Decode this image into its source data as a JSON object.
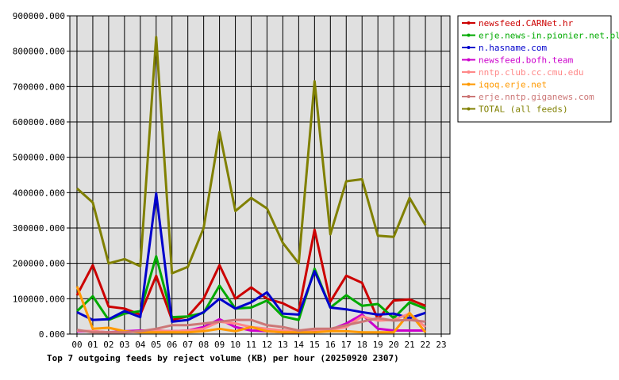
{
  "chart_data": {
    "type": "line",
    "title": "Top 7 outgoing feeds by reject volume (KB) per hour (20250920 2307)",
    "xlabel": "",
    "ylabel": "",
    "categories": [
      "00",
      "01",
      "02",
      "03",
      "04",
      "05",
      "06",
      "07",
      "08",
      "09",
      "10",
      "11",
      "12",
      "13",
      "14",
      "15",
      "16",
      "17",
      "18",
      "19",
      "20",
      "21",
      "22",
      "23"
    ],
    "ylim": [
      0,
      900000
    ],
    "yticks": [
      0,
      100000,
      200000,
      300000,
      400000,
      500000,
      600000,
      700000,
      800000,
      900000
    ],
    "ytick_labels": [
      "0.000",
      "100000.000",
      "200000.000",
      "300000.000",
      "400000.000",
      "500000.000",
      "600000.000",
      "700000.000",
      "800000.000",
      "900000.000"
    ],
    "grid": true,
    "legend_position": "top-right",
    "series": [
      {
        "name": "newsfeed.CARNet.hr",
        "color": "#cc0000",
        "values": [
          110000,
          195000,
          78000,
          72000,
          55000,
          165000,
          40000,
          50000,
          100000,
          195000,
          100000,
          132000,
          100000,
          87000,
          65000,
          295000,
          92000,
          165000,
          145000,
          42000,
          95000,
          98000,
          80000,
          null
        ]
      },
      {
        "name": "erje.news-in.pionier.net.pl",
        "color": "#00aa00",
        "values": [
          65000,
          107000,
          40000,
          58000,
          65000,
          220000,
          48000,
          50000,
          60000,
          137000,
          72000,
          75000,
          95000,
          50000,
          40000,
          185000,
          75000,
          110000,
          80000,
          85000,
          45000,
          90000,
          72000,
          null
        ]
      },
      {
        "name": "n.hasname.com",
        "color": "#0000cc",
        "values": [
          62000,
          40000,
          42000,
          65000,
          48000,
          398000,
          35000,
          40000,
          62000,
          100000,
          72000,
          90000,
          118000,
          58000,
          55000,
          178000,
          75000,
          70000,
          62000,
          55000,
          58000,
          45000,
          60000,
          null
        ]
      },
      {
        "name": "newsfeed.bofh.team",
        "color": "#cc00cc",
        "values": [
          8000,
          8000,
          5000,
          8000,
          10000,
          10000,
          8000,
          10000,
          20000,
          42000,
          20000,
          10000,
          8000,
          5000,
          5000,
          10000,
          12000,
          30000,
          55000,
          15000,
          10000,
          10000,
          10000,
          null
        ]
      },
      {
        "name": "nntp.club.cc.cmu.edu",
        "color": "#ff8888",
        "values": [
          10000,
          8000,
          5000,
          5000,
          8000,
          10000,
          8000,
          10000,
          15000,
          35000,
          30000,
          20000,
          15000,
          10000,
          8000,
          12000,
          12000,
          20000,
          50000,
          38000,
          40000,
          58000,
          20000,
          null
        ]
      },
      {
        "name": "iqoq.erje.net",
        "color": "#ff9900",
        "values": [
          135000,
          15000,
          18000,
          8000,
          5000,
          5000,
          5000,
          5000,
          8000,
          15000,
          8000,
          20000,
          8000,
          5000,
          5000,
          5000,
          8000,
          8000,
          5000,
          5000,
          5000,
          60000,
          5000,
          null
        ]
      },
      {
        "name": "erje.nntp.giganews.com",
        "color": "#cc7777",
        "values": [
          12000,
          5000,
          5000,
          5000,
          8000,
          15000,
          25000,
          25000,
          30000,
          35000,
          40000,
          40000,
          25000,
          20000,
          10000,
          15000,
          15000,
          25000,
          35000,
          45000,
          38000,
          40000,
          35000,
          null
        ]
      },
      {
        "name": "TOTAL (all feeds)",
        "color": "#808000",
        "values": [
          412000,
          372000,
          200000,
          212000,
          192000,
          840000,
          172000,
          190000,
          300000,
          572000,
          348000,
          385000,
          355000,
          258000,
          200000,
          715000,
          282000,
          432000,
          438000,
          278000,
          275000,
          385000,
          308000,
          null
        ]
      }
    ]
  }
}
